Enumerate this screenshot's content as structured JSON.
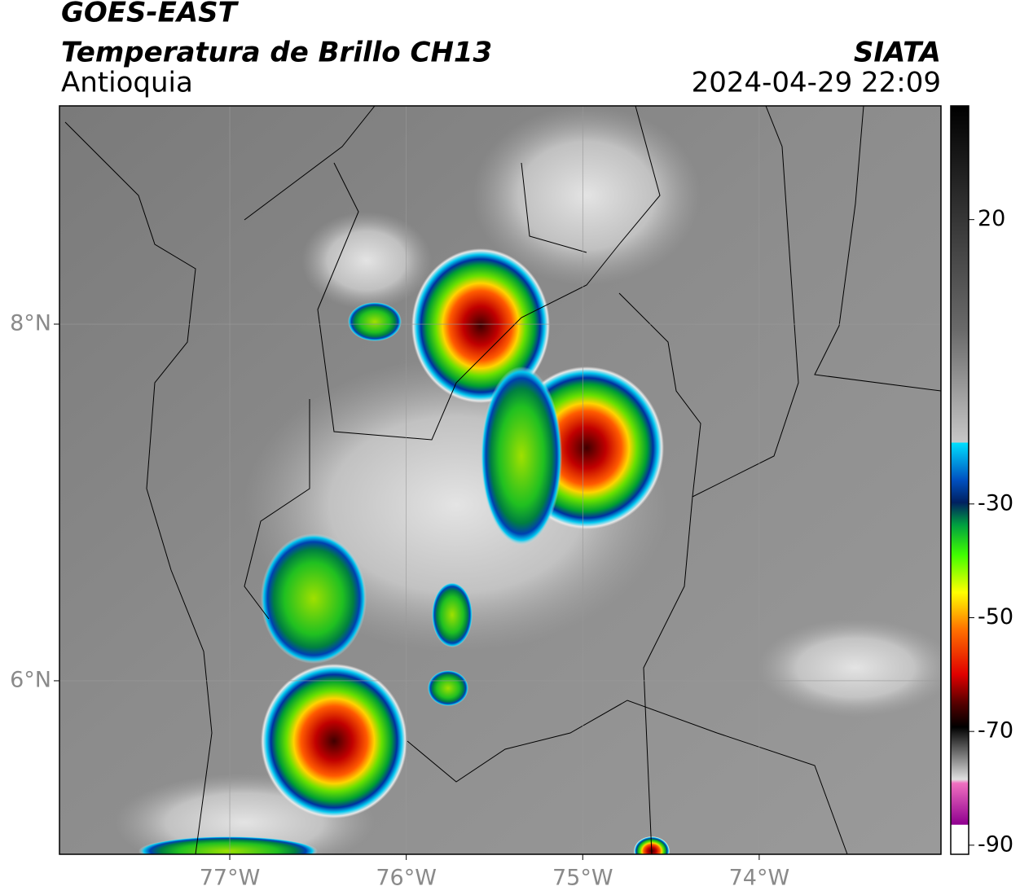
{
  "header": {
    "title": "GOES-EAST",
    "subtitle": "Temperatura de Brillo CH13",
    "region": "Antioquia",
    "source": "SIATA",
    "datetime": "2024-04-29 22:09"
  },
  "map": {
    "xlim": [
      -77.965,
      -72.97
    ],
    "ylim": [
      5.027,
      9.224
    ],
    "xticks": [
      {
        "value": -77,
        "label": "77°W"
      },
      {
        "value": -76,
        "label": "76°W"
      },
      {
        "value": -75,
        "label": "75°W"
      },
      {
        "value": -74,
        "label": "74°W"
      }
    ],
    "yticks": [
      {
        "value": 8,
        "label": "8°N"
      },
      {
        "value": 6,
        "label": "6°N"
      }
    ]
  },
  "colorbar": {
    "lim": [
      -91.6,
      40
    ],
    "ticks": [
      20,
      -30,
      -50,
      -70,
      -90
    ]
  }
}
